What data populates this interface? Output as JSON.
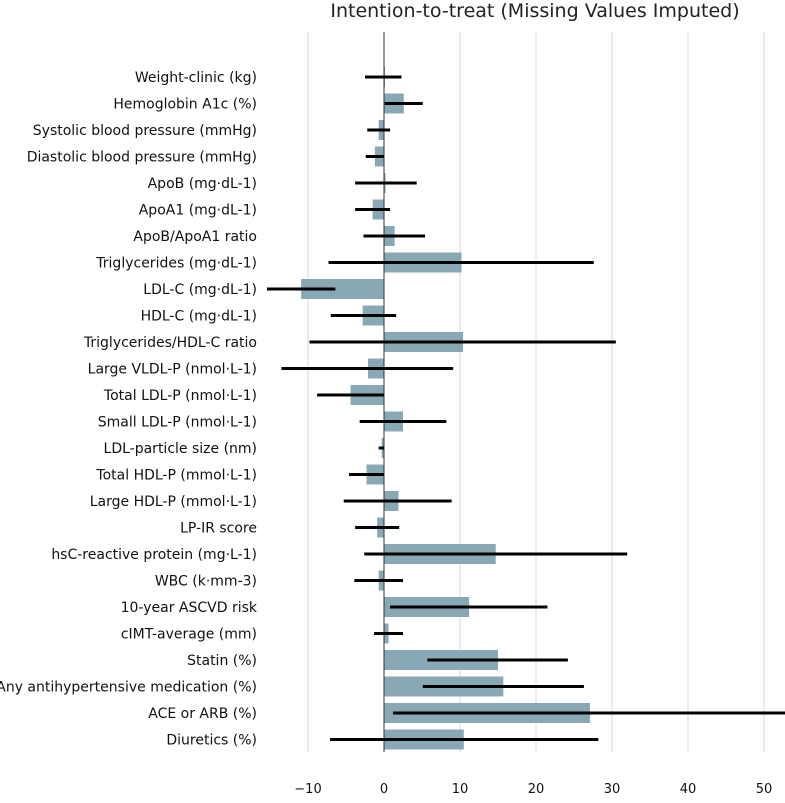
{
  "chart_data": {
    "type": "bar",
    "orientation": "horizontal",
    "title": "Intention-to-treat (Missing Values Imputed)",
    "xlabel": "",
    "ylabel": "",
    "xlim": [
      -15,
      53
    ],
    "xticks": [
      -10,
      0,
      10,
      20,
      30,
      40,
      50
    ],
    "grid": true,
    "categories": [
      "Weight-clinic (kg)",
      "Hemoglobin A1c (%)",
      "Systolic blood pressure (mmHg)",
      "Diastolic blood pressure (mmHg)",
      "ApoB (mg·dL-1)",
      "ApoA1 (mg·dL-1)",
      "ApoB/ApoA1 ratio",
      "Triglycerides (mg·dL-1)",
      "LDL-C (mg·dL-1)",
      "HDL-C (mg·dL-1)",
      "Triglycerides/HDL-C ratio",
      "Large VLDL-P (nmol·L-1)",
      "Total LDL-P (nmol·L-1)",
      "Small LDL-P (nmol·L-1)",
      "LDL-particle size (nm)",
      "Total HDL-P (mmol·L-1)",
      "Large HDL-P (mmol·L-1)",
      "LP-IR score",
      "hsC-reactive protein (mg·L-1)",
      "WBC (k·mm-3)",
      "10-year ASCVD risk",
      "cIMT-average (mm)",
      "Statin (%)",
      "Any antihypertensive medication (%)",
      "ACE or ARB (%)",
      "Diuretics (%)"
    ],
    "values": [
      0.1,
      2.6,
      -0.7,
      -1.2,
      0.2,
      -1.5,
      1.4,
      10.2,
      -10.9,
      -2.8,
      10.4,
      -2.1,
      -4.4,
      2.5,
      -0.3,
      -2.3,
      1.9,
      -0.9,
      14.7,
      -0.7,
      11.2,
      0.6,
      15.0,
      15.7,
      27.1,
      10.5
    ],
    "ci_low": [
      -2.5,
      0.1,
      -2.2,
      -2.4,
      -3.8,
      -3.8,
      -2.7,
      -7.3,
      -15.4,
      -7.0,
      -9.8,
      -13.5,
      -8.8,
      -3.2,
      -0.7,
      -4.6,
      -5.3,
      -3.8,
      -2.6,
      -3.9,
      0.8,
      -1.3,
      5.7,
      5.1,
      1.2,
      -7.1
    ],
    "ci_high": [
      2.3,
      5.1,
      0.8,
      0.0,
      4.3,
      0.8,
      5.4,
      27.6,
      -6.4,
      1.6,
      30.5,
      9.1,
      0.0,
      8.2,
      0.0,
      0.0,
      8.9,
      2.0,
      32.0,
      2.5,
      21.5,
      2.5,
      24.2,
      26.3,
      52.9,
      28.2
    ]
  }
}
